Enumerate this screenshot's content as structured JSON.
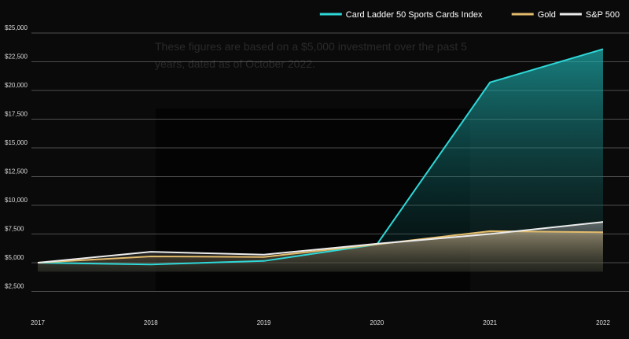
{
  "chart_data": {
    "type": "area",
    "annotation": "These figures are based on a $5,000 investment over the past 5 years, dated as of October 2022.",
    "categories": [
      "2017",
      "2018",
      "2019",
      "2020",
      "2021",
      "2022"
    ],
    "series": [
      {
        "name": "Card Ladder 50 Sports Cards Index",
        "color": "#2fd8d8",
        "values": [
          5000,
          4850,
          5150,
          6600,
          20700,
          23600
        ]
      },
      {
        "name": "Gold",
        "color": "#e2bc6c",
        "values": [
          5000,
          5550,
          5500,
          6600,
          7750,
          7650
        ]
      },
      {
        "name": "S&P 500",
        "color": "#ececec",
        "values": [
          5000,
          5950,
          5700,
          6650,
          7500,
          8550
        ]
      }
    ],
    "ylim": [
      0,
      25000
    ],
    "yticks": [
      {
        "value": 2500,
        "label": "$2,500"
      },
      {
        "value": 5000,
        "label": "$5,000"
      },
      {
        "value": 7500,
        "label": "$7,500"
      },
      {
        "value": 10000,
        "label": "$10,000"
      },
      {
        "value": 12500,
        "label": "$12,500"
      },
      {
        "value": 15000,
        "label": "$15,000"
      },
      {
        "value": 17500,
        "label": "$17,500"
      },
      {
        "value": 20000,
        "label": "$20,000"
      },
      {
        "value": 22500,
        "label": "$22,500"
      },
      {
        "value": 25000,
        "label": "$25,000"
      }
    ],
    "grid": true,
    "legend": "top-right"
  }
}
